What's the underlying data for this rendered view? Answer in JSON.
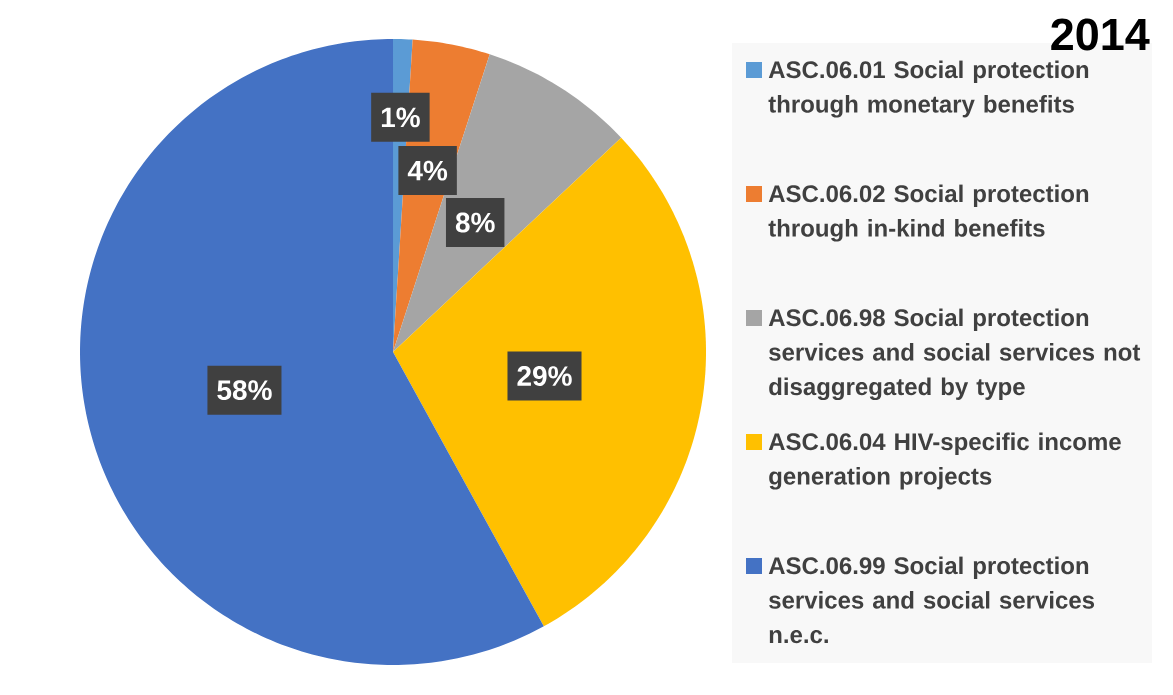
{
  "chart_data": {
    "type": "pie",
    "title": "2014",
    "categories": [
      "ASC.06.01 Social protection through monetary benefits",
      "ASC.06.02 Social protection through in-kind benefits",
      "ASC.06.98 Social protection services and social services not disaggregated by type",
      "ASC.06.04 HIV-specific income generation projects",
      "ASC.06.99 Social protection services and social services n.e.c."
    ],
    "values": [
      1,
      4,
      8,
      29,
      58
    ],
    "colors": [
      "#5b9bd5",
      "#ed7d31",
      "#a5a5a5",
      "#ffc000",
      "#4472c4"
    ],
    "value_labels": [
      "1%",
      "4%",
      "8%",
      "29%",
      "58%"
    ],
    "legend": "right"
  }
}
